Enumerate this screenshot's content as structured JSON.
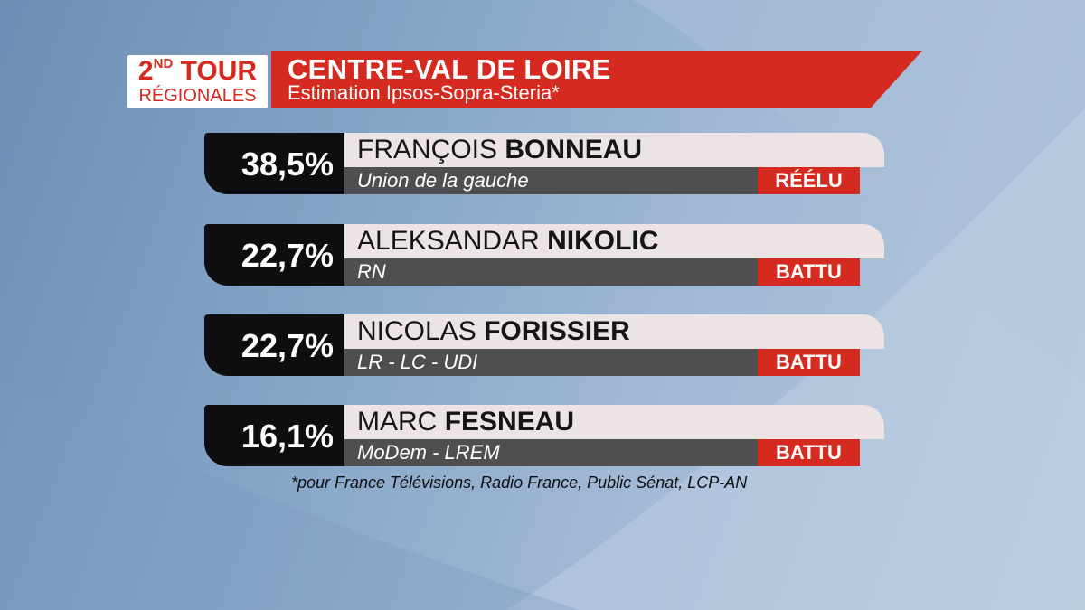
{
  "colors": {
    "accent_red": "#d42a20",
    "dark": "#0e0e10",
    "name_bg": "#ece4e4",
    "party_bg": "#4f4f52"
  },
  "header": {
    "round_main": "2",
    "round_sup": "ND",
    "round_word": "TOUR",
    "election": "RÉGIONALES",
    "region": "CENTRE-VAL DE LOIRE",
    "source": "Estimation Ipsos-Sopra-Steria*"
  },
  "candidates": [
    {
      "percent": "38,5%",
      "first_name": "FRANÇOIS",
      "last_name": "BONNEAU",
      "party": "Union de la gauche",
      "status": "RÉÉLU"
    },
    {
      "percent": "22,7%",
      "first_name": "ALEKSANDAR",
      "last_name": "NIKOLIC",
      "party": "RN",
      "status": "BATTU"
    },
    {
      "percent": "22,7%",
      "first_name": "NICOLAS",
      "last_name": "FORISSIER",
      "party": "LR - LC - UDI",
      "status": "BATTU"
    },
    {
      "percent": "16,1%",
      "first_name": "MARC",
      "last_name": "FESNEAU",
      "party": "MoDem - LREM",
      "status": "BATTU"
    }
  ],
  "footnote": "*pour France Télévisions, Radio France, Public Sénat, LCP-AN"
}
